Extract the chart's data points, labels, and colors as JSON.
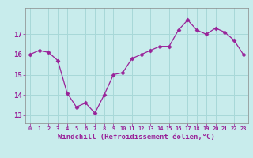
{
  "x": [
    0,
    1,
    2,
    3,
    4,
    5,
    6,
    7,
    8,
    9,
    10,
    11,
    12,
    13,
    14,
    15,
    16,
    17,
    18,
    19,
    20,
    21,
    22,
    23
  ],
  "y": [
    16.0,
    16.2,
    16.1,
    15.7,
    14.1,
    13.4,
    13.6,
    13.1,
    14.0,
    15.0,
    15.1,
    15.8,
    16.0,
    16.2,
    16.4,
    16.4,
    17.2,
    17.7,
    17.2,
    17.0,
    17.3,
    17.1,
    16.7,
    16.0
  ],
  "line_color": "#992299",
  "marker_color": "#992299",
  "bg_color": "#c8ecec",
  "grid_color": "#a8d8d8",
  "axis_color": "#888888",
  "xlabel": "Windchill (Refroidissement éolien,°C)",
  "ylim_min": 12.6,
  "ylim_max": 18.3,
  "xlim_min": -0.5,
  "xlim_max": 23.5,
  "yticks": [
    13,
    14,
    15,
    16,
    17
  ],
  "xticks": [
    0,
    1,
    2,
    3,
    4,
    5,
    6,
    7,
    8,
    9,
    10,
    11,
    12,
    13,
    14,
    15,
    16,
    17,
    18,
    19,
    20,
    21,
    22,
    23
  ]
}
